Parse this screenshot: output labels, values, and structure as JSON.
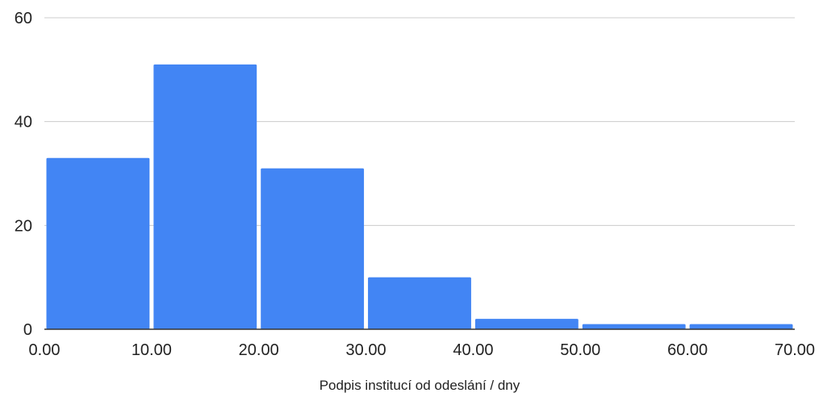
{
  "chart_data": {
    "type": "bar",
    "subtype": "histogram",
    "bins": [
      {
        "x0": 0,
        "x1": 10,
        "count": 33
      },
      {
        "x0": 10,
        "x1": 20,
        "count": 51
      },
      {
        "x0": 20,
        "x1": 30,
        "count": 31
      },
      {
        "x0": 30,
        "x1": 40,
        "count": 10
      },
      {
        "x0": 40,
        "x1": 50,
        "count": 2
      },
      {
        "x0": 50,
        "x1": 60,
        "count": 1
      },
      {
        "x0": 60,
        "x1": 70,
        "count": 1
      }
    ],
    "xlabel": "Podpis institucí od odeslání / dny",
    "ylabel": "",
    "title": "",
    "xlim": [
      0,
      70
    ],
    "ylim": [
      0,
      60
    ],
    "x_ticks": [
      "0.00",
      "10.00",
      "20.00",
      "30.00",
      "40.00",
      "50.00",
      "60.00",
      "70.00"
    ],
    "y_ticks": [
      "0",
      "20",
      "40",
      "60"
    ],
    "y_tick_values": [
      0,
      20,
      40,
      60
    ],
    "x_tick_values": [
      0,
      10,
      20,
      30,
      40,
      50,
      60,
      70
    ],
    "grid": true,
    "bar_color": "#4285f4",
    "grid_color": "#cccccc",
    "axis_color": "#333333"
  }
}
